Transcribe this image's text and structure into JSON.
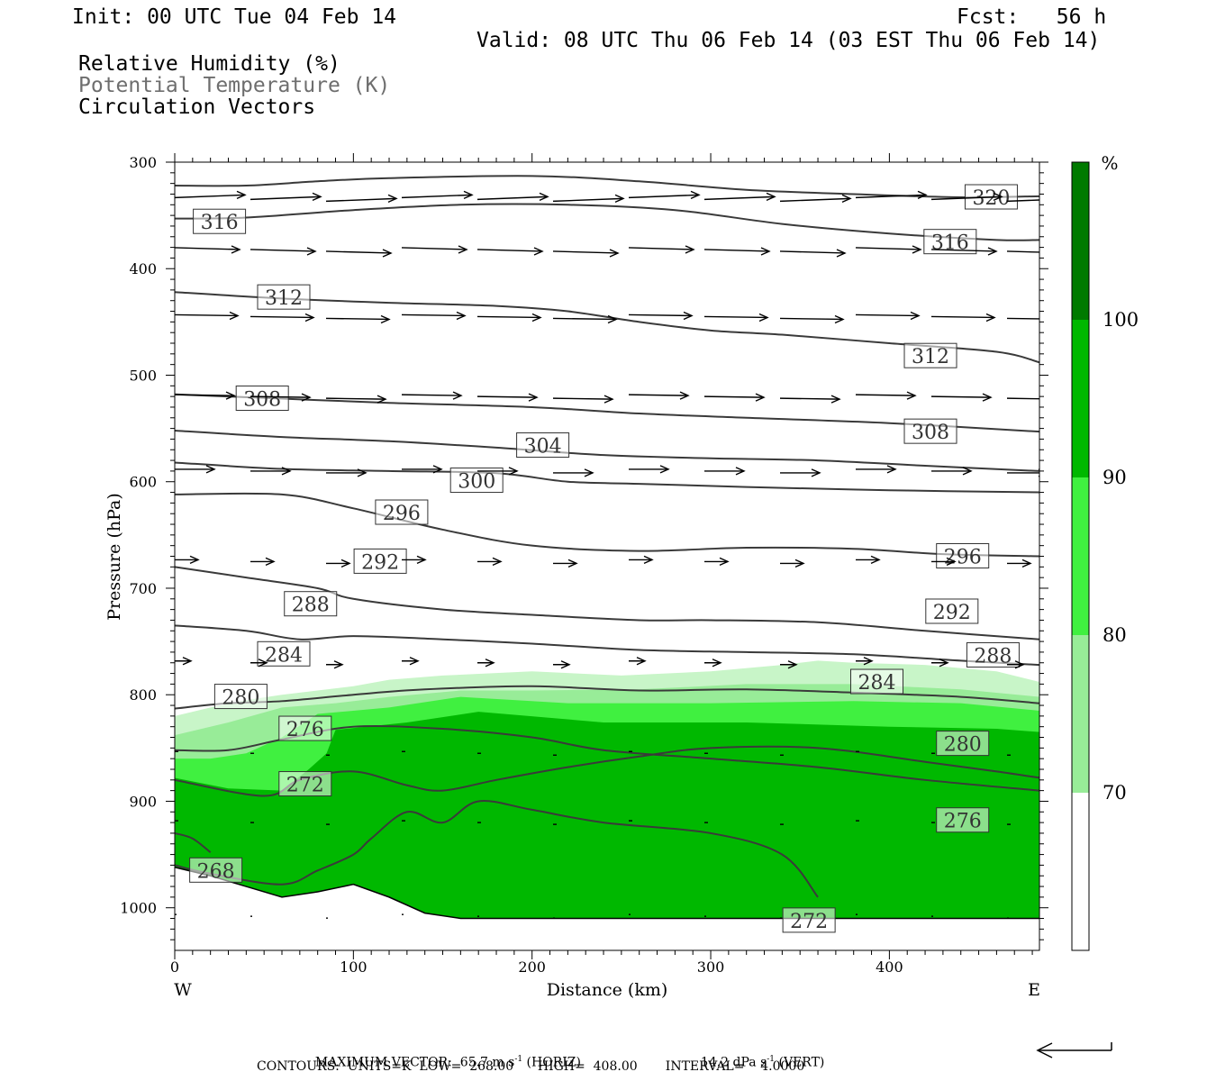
{
  "header": {
    "init": "Init: 00 UTC Tue 04 Feb 14",
    "fcst": "Fcst:   56 h",
    "valid": "Valid: 08 UTC Thu 06 Feb 14 (03 EST Thu 06 Feb 14)"
  },
  "legend_lines": {
    "rh": "Relative Humidity (%)",
    "theta": "Potential Temperature (K)",
    "vectors": "Circulation Vectors"
  },
  "footer": {
    "max_vector": "MAXIMUM VECTOR:  65.7 m s",
    "horiz": " (HORIZ)",
    "vert_val": "14.2 dPa s",
    "vert": " (VERT)",
    "contours": "CONTOURS:  UNITS=K  LOW=  268.00      HIGH=  408.00       INTERVAL=    4.0000"
  },
  "colors": {
    "rh70": "#c8f5c8",
    "rh80": "#98ec98",
    "rh90": "#40f040",
    "rh100": "#00b800",
    "rhtop": "#007a00",
    "contour": "#3a3a3a",
    "ground": "#000000"
  },
  "chart_data": {
    "type": "cross-section",
    "xlabel": "Distance (km)",
    "ylabel": "Pressure (hPa)",
    "x_end_labels": [
      "W",
      "E"
    ],
    "xlim": [
      0,
      484
    ],
    "ylim": [
      1040,
      300
    ],
    "xticks": [
      0,
      100,
      200,
      300,
      400
    ],
    "yticks": [
      300,
      400,
      500,
      600,
      700,
      800,
      900,
      1000
    ],
    "colorbar": {
      "unit": "%",
      "levels": [
        70,
        80,
        90,
        100
      ],
      "labels": [
        "70",
        "80",
        "90",
        "100"
      ]
    },
    "rh_bands": [
      {
        "level": 70,
        "top": [
          [
            0,
            820
          ],
          [
            20,
            812
          ],
          [
            40,
            805
          ],
          [
            60,
            800
          ],
          [
            80,
            796
          ],
          [
            100,
            792
          ],
          [
            120,
            786
          ],
          [
            150,
            782
          ],
          [
            200,
            778
          ],
          [
            250,
            782
          ],
          [
            300,
            778
          ],
          [
            340,
            772
          ],
          [
            360,
            768
          ],
          [
            380,
            770
          ],
          [
            420,
            772
          ],
          [
            460,
            778
          ],
          [
            484,
            788
          ]
        ]
      },
      {
        "level": 80,
        "top": [
          [
            0,
            838
          ],
          [
            30,
            826
          ],
          [
            60,
            812
          ],
          [
            90,
            808
          ],
          [
            120,
            802
          ],
          [
            160,
            796
          ],
          [
            200,
            796
          ],
          [
            260,
            795
          ],
          [
            320,
            790
          ],
          [
            380,
            790
          ],
          [
            440,
            795
          ],
          [
            484,
            802
          ]
        ]
      },
      {
        "level": 90,
        "top": [
          [
            0,
            860
          ],
          [
            20,
            860
          ],
          [
            40,
            855
          ],
          [
            60,
            840
          ],
          [
            80,
            818
          ],
          [
            120,
            812
          ],
          [
            160,
            802
          ],
          [
            220,
            808
          ],
          [
            300,
            808
          ],
          [
            380,
            806
          ],
          [
            440,
            808
          ],
          [
            484,
            815
          ]
        ]
      },
      {
        "level": 100,
        "top": [
          [
            0,
            878
          ],
          [
            30,
            888
          ],
          [
            60,
            890
          ],
          [
            75,
            870
          ],
          [
            85,
            855
          ],
          [
            90,
            833
          ],
          [
            130,
            826
          ],
          [
            170,
            816
          ],
          [
            240,
            826
          ],
          [
            320,
            826
          ],
          [
            400,
            830
          ],
          [
            460,
            832
          ],
          [
            484,
            835
          ]
        ]
      }
    ],
    "ground_pressure": [
      [
        0,
        962
      ],
      [
        20,
        970
      ],
      [
        40,
        980
      ],
      [
        60,
        990
      ],
      [
        80,
        985
      ],
      [
        100,
        978
      ],
      [
        120,
        990
      ],
      [
        140,
        1005
      ],
      [
        160,
        1010
      ],
      [
        200,
        1010
      ],
      [
        300,
        1010
      ],
      [
        400,
        1010
      ],
      [
        484,
        1010
      ]
    ],
    "theta_contours": [
      {
        "value": 268,
        "points": [
          [
            0,
            930
          ],
          [
            10,
            935
          ],
          [
            20,
            948
          ]
        ]
      },
      {
        "value": 272,
        "points": [
          [
            0,
            960
          ],
          [
            20,
            968
          ],
          [
            60,
            978
          ],
          [
            80,
            965
          ],
          [
            100,
            950
          ],
          [
            110,
            935
          ],
          [
            130,
            910
          ],
          [
            150,
            920
          ],
          [
            170,
            900
          ],
          [
            200,
            908
          ],
          [
            240,
            920
          ],
          [
            300,
            930
          ],
          [
            340,
            950
          ],
          [
            360,
            990
          ]
        ]
      },
      {
        "value": 276,
        "points": [
          [
            0,
            880
          ],
          [
            50,
            895
          ],
          [
            70,
            880
          ],
          [
            100,
            872
          ],
          [
            130,
            885
          ],
          [
            150,
            890
          ],
          [
            180,
            880
          ],
          [
            220,
            868
          ],
          [
            260,
            858
          ],
          [
            300,
            850
          ],
          [
            360,
            850
          ],
          [
            420,
            863
          ],
          [
            460,
            872
          ],
          [
            484,
            878
          ]
        ]
      },
      {
        "value": 280,
        "points": [
          [
            0,
            852
          ],
          [
            30,
            852
          ],
          [
            60,
            842
          ],
          [
            100,
            830
          ],
          [
            150,
            832
          ],
          [
            200,
            840
          ],
          [
            240,
            852
          ],
          [
            300,
            860
          ],
          [
            360,
            868
          ],
          [
            420,
            880
          ],
          [
            484,
            890
          ]
        ]
      },
      {
        "value": 284,
        "points": [
          [
            0,
            813
          ],
          [
            30,
            808
          ],
          [
            60,
            806
          ],
          [
            100,
            800
          ],
          [
            140,
            795
          ],
          [
            200,
            792
          ],
          [
            260,
            796
          ],
          [
            320,
            795
          ],
          [
            380,
            798
          ],
          [
            440,
            802
          ],
          [
            484,
            808
          ]
        ]
      },
      {
        "value": 288,
        "points": [
          [
            0,
            735
          ],
          [
            40,
            740
          ],
          [
            70,
            748
          ],
          [
            100,
            745
          ],
          [
            150,
            748
          ],
          [
            200,
            752
          ],
          [
            260,
            758
          ],
          [
            320,
            760
          ],
          [
            380,
            762
          ],
          [
            440,
            768
          ],
          [
            484,
            772
          ]
        ]
      },
      {
        "value": 292,
        "points": [
          [
            0,
            680
          ],
          [
            40,
            690
          ],
          [
            80,
            700
          ],
          [
            100,
            710
          ],
          [
            150,
            720
          ],
          [
            200,
            725
          ],
          [
            260,
            730
          ],
          [
            300,
            730
          ],
          [
            360,
            732
          ],
          [
            420,
            740
          ],
          [
            484,
            748
          ]
        ]
      },
      {
        "value": 296,
        "points": [
          [
            0,
            612
          ],
          [
            60,
            612
          ],
          [
            100,
            625
          ],
          [
            150,
            645
          ],
          [
            200,
            660
          ],
          [
            260,
            665
          ],
          [
            320,
            662
          ],
          [
            380,
            663
          ],
          [
            430,
            668
          ],
          [
            484,
            670
          ]
        ]
      },
      {
        "value": 300,
        "points": [
          [
            0,
            582
          ],
          [
            60,
            588
          ],
          [
            120,
            590
          ],
          [
            180,
            592
          ],
          [
            220,
            600
          ],
          [
            260,
            602
          ],
          [
            320,
            605
          ],
          [
            400,
            608
          ],
          [
            484,
            610
          ]
        ]
      },
      {
        "value": 304,
        "points": [
          [
            0,
            552
          ],
          [
            60,
            558
          ],
          [
            120,
            562
          ],
          [
            180,
            568
          ],
          [
            240,
            575
          ],
          [
            300,
            578
          ],
          [
            360,
            580
          ],
          [
            420,
            585
          ],
          [
            484,
            590
          ]
        ]
      },
      {
        "value": 308,
        "points": [
          [
            0,
            518
          ],
          [
            60,
            522
          ],
          [
            120,
            526
          ],
          [
            200,
            530
          ],
          [
            260,
            536
          ],
          [
            320,
            540
          ],
          [
            400,
            545
          ],
          [
            484,
            553
          ]
        ]
      },
      {
        "value": 312,
        "points": [
          [
            0,
            422
          ],
          [
            60,
            428
          ],
          [
            120,
            432
          ],
          [
            180,
            435
          ],
          [
            220,
            440
          ],
          [
            260,
            450
          ],
          [
            300,
            458
          ],
          [
            340,
            462
          ],
          [
            400,
            470
          ],
          [
            460,
            478
          ],
          [
            484,
            488
          ]
        ]
      },
      {
        "value": 316,
        "points": [
          [
            0,
            353
          ],
          [
            40,
            352
          ],
          [
            100,
            345
          ],
          [
            160,
            340
          ],
          [
            220,
            340
          ],
          [
            280,
            345
          ],
          [
            340,
            358
          ],
          [
            400,
            367
          ],
          [
            460,
            373
          ],
          [
            484,
            373
          ]
        ]
      },
      {
        "value": 320,
        "points": [
          [
            0,
            322
          ],
          [
            40,
            322
          ],
          [
            80,
            318
          ],
          [
            120,
            315
          ],
          [
            200,
            313
          ],
          [
            260,
            318
          ],
          [
            320,
            326
          ],
          [
            380,
            330
          ],
          [
            440,
            333
          ],
          [
            484,
            332
          ]
        ]
      }
    ],
    "theta_labels": [
      {
        "value": "316",
        "x": 25,
        "p": 356
      },
      {
        "value": "320",
        "x": 457,
        "p": 333
      },
      {
        "value": "316",
        "x": 434,
        "p": 375
      },
      {
        "value": "312",
        "x": 61,
        "p": 427
      },
      {
        "value": "312",
        "x": 423,
        "p": 482
      },
      {
        "value": "308",
        "x": 49,
        "p": 522
      },
      {
        "value": "308",
        "x": 423,
        "p": 553
      },
      {
        "value": "304",
        "x": 206,
        "p": 566
      },
      {
        "value": "300",
        "x": 169,
        "p": 599
      },
      {
        "value": "296",
        "x": 127,
        "p": 629
      },
      {
        "value": "296",
        "x": 441,
        "p": 670
      },
      {
        "value": "292",
        "x": 115,
        "p": 675
      },
      {
        "value": "292",
        "x": 435,
        "p": 722
      },
      {
        "value": "288",
        "x": 76,
        "p": 715
      },
      {
        "value": "288",
        "x": 458,
        "p": 763
      },
      {
        "value": "284",
        "x": 61,
        "p": 762
      },
      {
        "value": "284",
        "x": 393,
        "p": 788
      },
      {
        "value": "280",
        "x": 37,
        "p": 802
      },
      {
        "value": "280",
        "x": 441,
        "p": 846
      },
      {
        "value": "276",
        "x": 73,
        "p": 832
      },
      {
        "value": "276",
        "x": 441,
        "p": 918
      },
      {
        "value": "272",
        "x": 73,
        "p": 884
      },
      {
        "value": "268",
        "x": 23,
        "p": 965
      },
      {
        "value": "272",
        "x": 355,
        "p": 1012
      }
    ],
    "max_vector": {
      "horiz_ms": 65.7,
      "vert_dpas": 14.2
    },
    "contour_info": {
      "units": "K",
      "low": 268.0,
      "high": 408.0,
      "interval": 4.0
    }
  }
}
